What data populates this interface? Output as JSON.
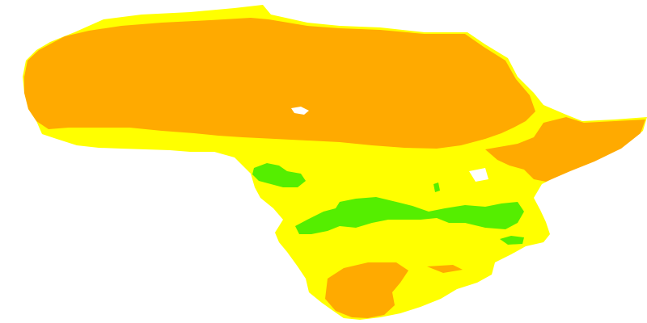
{
  "map": {
    "colors": {
      "background": "#ffffff",
      "orange": "#ffaa00",
      "yellow": "#ffff00",
      "green": "#55ee00",
      "gap": "#ffffff"
    },
    "zones": [
      {
        "name": "orange-zone",
        "color": "#ffaa00"
      },
      {
        "name": "yellow-zone",
        "color": "#ffff00"
      },
      {
        "name": "green-zone",
        "color": "#55ee00"
      }
    ]
  }
}
